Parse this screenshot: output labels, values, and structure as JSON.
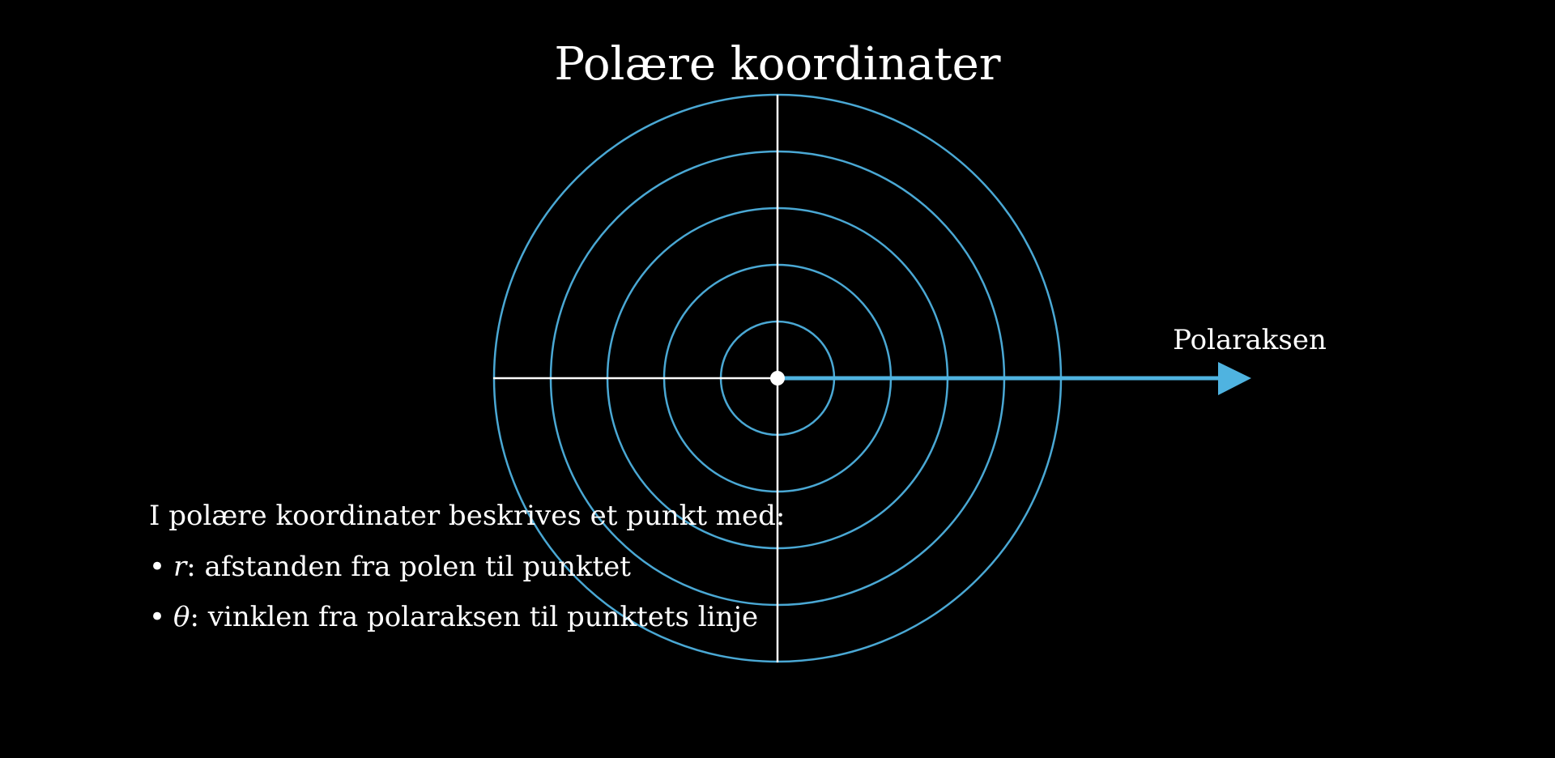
{
  "title": "Polære koordinater",
  "polar_axis_label": "Polaraksen",
  "circles": {
    "count": 5
  },
  "colors": {
    "background": "#000000",
    "circles": "#4aa8d4",
    "arrow": "#4fb3e0",
    "axes": "#ffffff",
    "text": "#ffffff"
  },
  "description": {
    "intro": "I polære koordinater beskrives et punkt med:",
    "items": [
      {
        "bullet": "•",
        "symbol": "r",
        "text": ": afstanden fra polen til punktet"
      },
      {
        "bullet": "•",
        "symbol": "θ",
        "text": ": vinklen fra polaraksen til punktets linje"
      }
    ]
  }
}
